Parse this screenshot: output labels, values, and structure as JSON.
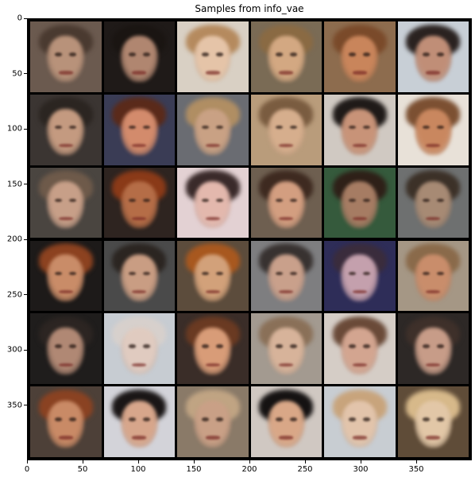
{
  "figure": {
    "title": "Samples from info_vae",
    "grid": {
      "rows": 6,
      "cols": 6
    },
    "x_axis": {
      "data_range": [
        0,
        400
      ],
      "ticks": [
        "0",
        "50",
        "100",
        "150",
        "200",
        "250",
        "300",
        "350"
      ]
    },
    "y_axis": {
      "data_range": [
        0,
        400
      ],
      "ticks": [
        "0",
        "50",
        "100",
        "150",
        "200",
        "250",
        "300",
        "350"
      ]
    },
    "faces": [
      {
        "bg": "#6b5a4f",
        "skin": "#b8927a",
        "hair": "#4a3a30"
      },
      {
        "bg": "#1f1a18",
        "skin": "#b08670",
        "hair": "#1a1512"
      },
      {
        "bg": "#d9d0c4",
        "skin": "#e5c4a8",
        "hair": "#b58a5e"
      },
      {
        "bg": "#7a6b55",
        "skin": "#d3a882",
        "hair": "#8a6a43"
      },
      {
        "bg": "#8d6c4e",
        "skin": "#c9855b",
        "hair": "#7a4a2a"
      },
      {
        "bg": "#c8cfd6",
        "skin": "#c08e77",
        "hair": "#2a2220"
      },
      {
        "bg": "#3b3532",
        "skin": "#c49a80",
        "hair": "#2b2521"
      },
      {
        "bg": "#3a3c55",
        "skin": "#d38b6c",
        "hair": "#5a2a1a"
      },
      {
        "bg": "#6a6c72",
        "skin": "#c9a184",
        "hair": "#b08e63"
      },
      {
        "bg": "#b99c7b",
        "skin": "#d6ae8d",
        "hair": "#7a5c40"
      },
      {
        "bg": "#d0c9c2",
        "skin": "#c89378",
        "hair": "#1f1a18"
      },
      {
        "bg": "#e8e1d8",
        "skin": "#c9875f",
        "hair": "#7c5032"
      },
      {
        "bg": "#4a4540",
        "skin": "#c79f88",
        "hair": "#6e5a4a"
      },
      {
        "bg": "#2e2420",
        "skin": "#b56d47",
        "hair": "#8a3a18"
      },
      {
        "bg": "#e3d1d3",
        "skin": "#e3b8ad",
        "hair": "#3a2a2a"
      },
      {
        "bg": "#6e5f50",
        "skin": "#d39e80",
        "hair": "#3e2a20"
      },
      {
        "bg": "#355a3c",
        "skin": "#a67c63",
        "hair": "#2e2018"
      },
      {
        "bg": "#6e7070",
        "skin": "#a78a74",
        "hair": "#3c3128"
      },
      {
        "bg": "#1d1a19",
        "skin": "#c98c68",
        "hair": "#8c4220"
      },
      {
        "bg": "#4a4a4a",
        "skin": "#c99d83",
        "hair": "#2b2521"
      },
      {
        "bg": "#5c4c3c",
        "skin": "#d2a17a",
        "hair": "#a8581f"
      },
      {
        "bg": "#7e7e80",
        "skin": "#c9a08b",
        "hair": "#383230"
      },
      {
        "bg": "#2e2d58",
        "skin": "#c4a0ad",
        "hair": "#3a2c3c"
      },
      {
        "bg": "#a59785",
        "skin": "#c98d6b",
        "hair": "#8a6a4a"
      },
      {
        "bg": "#1f1d1c",
        "skin": "#b08874",
        "hair": "#2c2522"
      },
      {
        "bg": "#c7ccd2",
        "skin": "#e0cbc0",
        "hair": "#d7d0cc"
      },
      {
        "bg": "#3a2d28",
        "skin": "#d89c78",
        "hair": "#6a3a22"
      },
      {
        "bg": "#a39a90",
        "skin": "#d7b39a",
        "hair": "#8a7058"
      },
      {
        "bg": "#d5cdc6",
        "skin": "#d3a590",
        "hair": "#6a4a38"
      },
      {
        "bg": "#2d2826",
        "skin": "#c79c88",
        "hair": "#3e302a"
      },
      {
        "bg": "#4d4038",
        "skin": "#c98a66",
        "hair": "#8a4222"
      },
      {
        "bg": "#d3d3d9",
        "skin": "#d7a68b",
        "hair": "#1a1616"
      },
      {
        "bg": "#8a7a68",
        "skin": "#c9a086",
        "hair": "#c0a483"
      },
      {
        "bg": "#d0c8c2",
        "skin": "#d9a787",
        "hair": "#151212"
      },
      {
        "bg": "#c8cdd2",
        "skin": "#e2c4ab",
        "hair": "#c8a47c"
      },
      {
        "bg": "#5f4c38",
        "skin": "#e2c7a7",
        "hair": "#d7b98a"
      }
    ]
  }
}
